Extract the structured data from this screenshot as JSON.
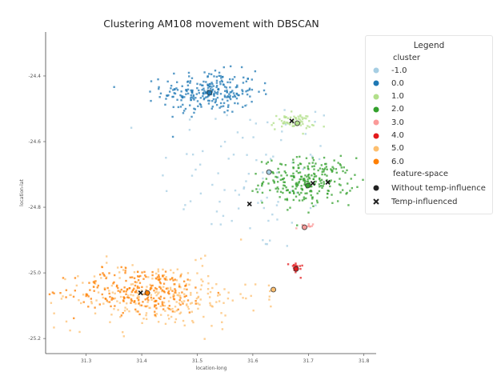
{
  "chart_data": {
    "type": "scatter",
    "title": "Clustering AM108 movement with DBSCAN",
    "xlabel": "location-long",
    "ylabel": "location-lat",
    "xlim": [
      31.227,
      31.822
    ],
    "ylim": [
      -25.246,
      -24.266
    ],
    "xticks": [
      31.3,
      31.4,
      31.5,
      31.6,
      31.7,
      31.8
    ],
    "xtick_labels": [
      "31.3",
      "31.4",
      "31.5",
      "31.6",
      "31.7",
      "31.8"
    ],
    "yticks": [
      -24.4,
      -24.6,
      -24.8,
      -25.0,
      -25.2
    ],
    "ytick_labels": [
      "-24.4",
      "-24.6",
      "-24.8",
      "-25.0",
      "-25.2"
    ],
    "grid": false,
    "legend": {
      "placement": "upper-right-outside",
      "title": "Legend",
      "cluster_header": "cluster",
      "clusters": [
        {
          "label": "-1.0",
          "color": "#a6cee3"
        },
        {
          "label": "0.0",
          "color": "#1f78b4"
        },
        {
          "label": "1.0",
          "color": "#b2df8a"
        },
        {
          "label": "2.0",
          "color": "#33a02c"
        },
        {
          "label": "3.0",
          "color": "#fb9a99"
        },
        {
          "label": "4.0",
          "color": "#e31a1c"
        },
        {
          "label": "5.0",
          "color": "#fdbf6f"
        },
        {
          "label": "6.0",
          "color": "#ff7f00"
        }
      ],
      "feature_header": "feature-space",
      "features": [
        {
          "label": "Without temp-influence",
          "marker": "circle"
        },
        {
          "label": "Temp-influenced",
          "marker": "x"
        }
      ]
    },
    "clusters": [
      {
        "id": -1,
        "center": [
          31.6,
          -24.7
        ],
        "spread": [
          0.17,
          0.25
        ],
        "count": 90
      },
      {
        "id": 0,
        "center": [
          31.522,
          -24.449
        ],
        "spread": [
          0.085,
          0.065
        ],
        "count": 260
      },
      {
        "id": 1,
        "center": [
          31.672,
          -24.54
        ],
        "spread": [
          0.04,
          0.025
        ],
        "count": 60
      },
      {
        "id": 2,
        "center": [
          31.7,
          -24.72
        ],
        "spread": [
          0.08,
          0.07
        ],
        "count": 260
      },
      {
        "id": 3,
        "center": [
          31.693,
          -24.86
        ],
        "spread": [
          0.015,
          0.01
        ],
        "count": 12
      },
      {
        "id": 4,
        "center": [
          31.678,
          -24.985
        ],
        "spread": [
          0.012,
          0.02
        ],
        "count": 18
      },
      {
        "id": 5,
        "center": [
          31.43,
          -25.07
        ],
        "spread": [
          0.18,
          0.1
        ],
        "count": 260
      },
      {
        "id": 6,
        "center": [
          31.4,
          -25.055
        ],
        "spread": [
          0.12,
          0.07
        ],
        "count": 220
      }
    ],
    "centroids_without_temp": [
      {
        "cluster": -1,
        "x": 31.629,
        "y": -24.693
      },
      {
        "cluster": 0,
        "x": 31.522,
        "y": -24.451
      },
      {
        "cluster": 1,
        "x": 31.68,
        "y": -24.544
      },
      {
        "cluster": 2,
        "x": 31.699,
        "y": -24.734
      },
      {
        "cluster": 3,
        "x": 31.693,
        "y": -24.861
      },
      {
        "cluster": 4,
        "x": 31.678,
        "y": -24.988
      },
      {
        "cluster": 5,
        "x": 31.637,
        "y": -25.051
      },
      {
        "cluster": 6,
        "x": 31.41,
        "y": -25.061
      }
    ],
    "centroids_temp_influenced": [
      {
        "x": 31.67,
        "y": -24.537
      },
      {
        "x": 31.708,
        "y": -24.727
      },
      {
        "x": 31.735,
        "y": -24.724
      },
      {
        "x": 31.594,
        "y": -24.79
      },
      {
        "x": 31.398,
        "y": -25.061
      }
    ]
  }
}
